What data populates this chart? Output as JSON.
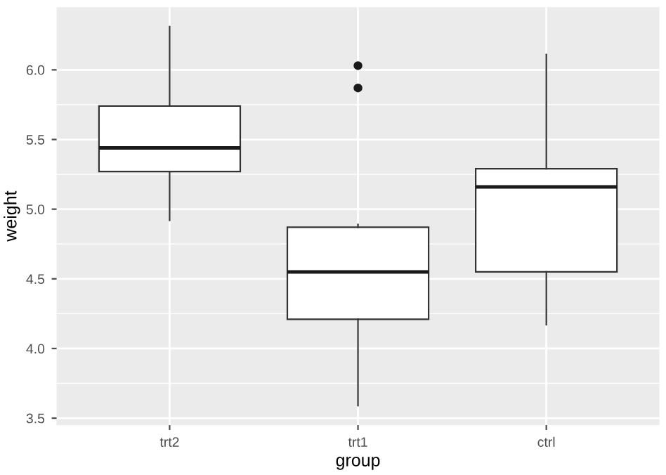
{
  "chart_data": {
    "type": "box",
    "xlabel": "group",
    "ylabel": "weight",
    "categories": [
      "trt2",
      "trt1",
      "ctrl"
    ],
    "boxes": [
      {
        "low": 4.92,
        "q1": 5.27,
        "median": 5.44,
        "q3": 5.74,
        "high": 6.31
      },
      {
        "low": 3.59,
        "q1": 4.21,
        "median": 4.55,
        "q3": 4.87,
        "high": 4.89,
        "outliers": [
          5.87,
          6.03
        ]
      },
      {
        "low": 4.17,
        "q1": 4.55,
        "median": 5.16,
        "q3": 5.29,
        "high": 6.11
      }
    ],
    "ylim": [
      3.45,
      6.45
    ],
    "yticks": [
      {
        "value": 3.5,
        "label": "3.5"
      },
      {
        "value": 4.0,
        "label": "4.0"
      },
      {
        "value": 4.5,
        "label": "4.5"
      },
      {
        "value": 5.0,
        "label": "5.0"
      },
      {
        "value": 5.5,
        "label": "5.5"
      },
      {
        "value": 6.0,
        "label": "6.0"
      }
    ],
    "grid": true
  }
}
